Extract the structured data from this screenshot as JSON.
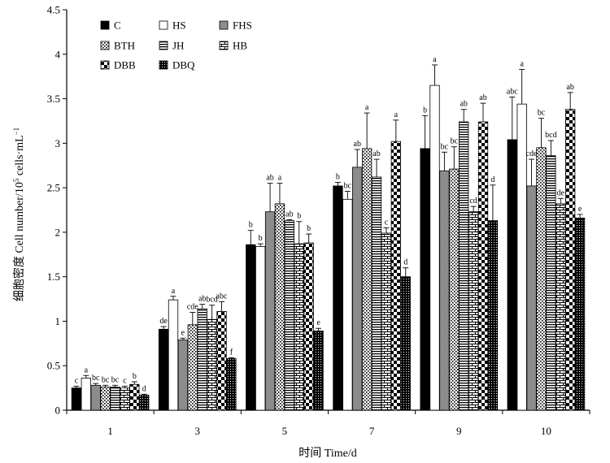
{
  "chart_data": {
    "type": "bar",
    "xlabel": "时间 Time/d",
    "ylabel_main": "细胞密度 Cell number/10",
    "ylabel_sup": "5",
    "ylabel_tail": " cells·mL",
    "ylabel_sup2": "−1",
    "ylim": [
      0,
      4.5
    ],
    "yticks": [
      "0",
      "0.5",
      "1",
      "1.5",
      "2",
      "2.5",
      "3",
      "3.5",
      "4",
      "4.5"
    ],
    "categories": [
      "1",
      "3",
      "5",
      "7",
      "9",
      "10"
    ],
    "legend_position": "top-left",
    "grid": false,
    "series": [
      {
        "name": "C",
        "pattern": "solid-black",
        "values": [
          0.25,
          0.91,
          1.86,
          2.52,
          2.94,
          3.04
        ],
        "errors": [
          0.02,
          0.03,
          0.16,
          0.04,
          0.37,
          0.48
        ],
        "labels": [
          "c",
          "de",
          "b",
          "b",
          "b",
          "abc"
        ]
      },
      {
        "name": "HS",
        "pattern": "white",
        "values": [
          0.36,
          1.24,
          1.84,
          2.37,
          3.65,
          3.44
        ],
        "errors": [
          0.03,
          0.04,
          0.03,
          0.09,
          0.23,
          0.39
        ],
        "labels": [
          "a",
          "a",
          "b",
          "bc",
          "a",
          "a"
        ]
      },
      {
        "name": "FHS",
        "pattern": "gray",
        "values": [
          0.28,
          0.79,
          2.23,
          2.73,
          2.69,
          2.52
        ],
        "errors": [
          0.02,
          0.02,
          0.32,
          0.2,
          0.21,
          0.3
        ],
        "labels": [
          "bc",
          "e",
          "ab",
          "ab",
          "bc",
          "cde"
        ]
      },
      {
        "name": "BTH",
        "pattern": "dots",
        "values": [
          0.26,
          0.96,
          2.32,
          2.94,
          2.71,
          2.95
        ],
        "errors": [
          0.02,
          0.14,
          0.23,
          0.4,
          0.25,
          0.33
        ],
        "labels": [
          "bc",
          "cde",
          "a",
          "a",
          "bc",
          "bc"
        ]
      },
      {
        "name": "JH",
        "pattern": "hlines",
        "values": [
          0.26,
          1.14,
          2.13,
          2.62,
          3.24,
          2.86
        ],
        "errors": [
          0.02,
          0.05,
          0.01,
          0.2,
          0.14,
          0.17
        ],
        "labels": [
          "bc",
          "ab",
          "ab",
          "ab",
          "ab",
          "bcd"
        ]
      },
      {
        "name": "HB",
        "pattern": "bricks",
        "values": [
          0.25,
          1.02,
          1.87,
          1.99,
          2.23,
          2.32
        ],
        "errors": [
          0.02,
          0.16,
          0.25,
          0.06,
          0.06,
          0.06
        ],
        "labels": [
          "c",
          "bcd",
          "b",
          "c",
          "cd",
          "de"
        ]
      },
      {
        "name": "DBB",
        "pattern": "checker",
        "values": [
          0.29,
          1.11,
          1.88,
          3.02,
          3.24,
          3.38
        ],
        "errors": [
          0.03,
          0.11,
          0.1,
          0.24,
          0.21,
          0.19
        ],
        "labels": [
          "b",
          "abc",
          "b",
          "a",
          "ab",
          "ab"
        ]
      },
      {
        "name": "DBQ",
        "pattern": "dense-dots",
        "values": [
          0.17,
          0.58,
          0.89,
          1.5,
          2.13,
          2.16
        ],
        "errors": [
          0.01,
          0.01,
          0.03,
          0.1,
          0.4,
          0.04
        ],
        "labels": [
          "d",
          "f",
          "e",
          "d",
          "d",
          "e"
        ]
      }
    ]
  }
}
